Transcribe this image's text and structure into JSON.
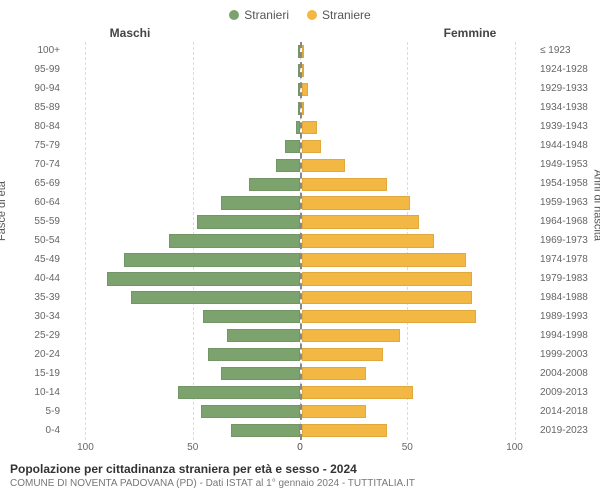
{
  "legend": {
    "male": {
      "label": "Stranieri",
      "color": "#7ca36e"
    },
    "female": {
      "label": "Straniere",
      "color": "#f2b843"
    }
  },
  "headers": {
    "left": "Maschi",
    "right": "Femmine"
  },
  "axis_labels": {
    "left": "Fasce di età",
    "right": "Anni di nascita"
  },
  "x_axis": {
    "max": 110,
    "ticks": [
      0,
      50,
      100
    ]
  },
  "grid_color": "#dcdcdc",
  "center_line_color": "#888888",
  "background_color": "#ffffff",
  "text_color": "#666666",
  "title_fontsize": 12,
  "sub_fontsize": 10,
  "rows": [
    {
      "age": "100+",
      "birth": "≤ 1923",
      "m": 0,
      "f": 0
    },
    {
      "age": "95-99",
      "birth": "1924-1928",
      "m": 0,
      "f": 0
    },
    {
      "age": "90-94",
      "birth": "1929-1933",
      "m": 0,
      "f": 3
    },
    {
      "age": "85-89",
      "birth": "1934-1938",
      "m": 0,
      "f": 0
    },
    {
      "age": "80-84",
      "birth": "1939-1943",
      "m": 2,
      "f": 7
    },
    {
      "age": "75-79",
      "birth": "1944-1948",
      "m": 7,
      "f": 9
    },
    {
      "age": "70-74",
      "birth": "1949-1953",
      "m": 11,
      "f": 20
    },
    {
      "age": "65-69",
      "birth": "1954-1958",
      "m": 24,
      "f": 40
    },
    {
      "age": "60-64",
      "birth": "1959-1963",
      "m": 37,
      "f": 51
    },
    {
      "age": "55-59",
      "birth": "1964-1968",
      "m": 48,
      "f": 55
    },
    {
      "age": "50-54",
      "birth": "1969-1973",
      "m": 61,
      "f": 62
    },
    {
      "age": "45-49",
      "birth": "1974-1978",
      "m": 82,
      "f": 77
    },
    {
      "age": "40-44",
      "birth": "1979-1983",
      "m": 90,
      "f": 80
    },
    {
      "age": "35-39",
      "birth": "1984-1988",
      "m": 79,
      "f": 80
    },
    {
      "age": "30-34",
      "birth": "1989-1993",
      "m": 45,
      "f": 82
    },
    {
      "age": "25-29",
      "birth": "1994-1998",
      "m": 34,
      "f": 46
    },
    {
      "age": "20-24",
      "birth": "1999-2003",
      "m": 43,
      "f": 38
    },
    {
      "age": "15-19",
      "birth": "2004-2008",
      "m": 37,
      "f": 30
    },
    {
      "age": "10-14",
      "birth": "2009-2013",
      "m": 57,
      "f": 52
    },
    {
      "age": "5-9",
      "birth": "2014-2018",
      "m": 46,
      "f": 30
    },
    {
      "age": "0-4",
      "birth": "2019-2023",
      "m": 32,
      "f": 40
    }
  ],
  "footer": {
    "title": "Popolazione per cittadinanza straniera per età e sesso - 2024",
    "subtitle": "COMUNE DI NOVENTA PADOVANA (PD) - Dati ISTAT al 1° gennaio 2024 - TUTTITALIA.IT"
  }
}
